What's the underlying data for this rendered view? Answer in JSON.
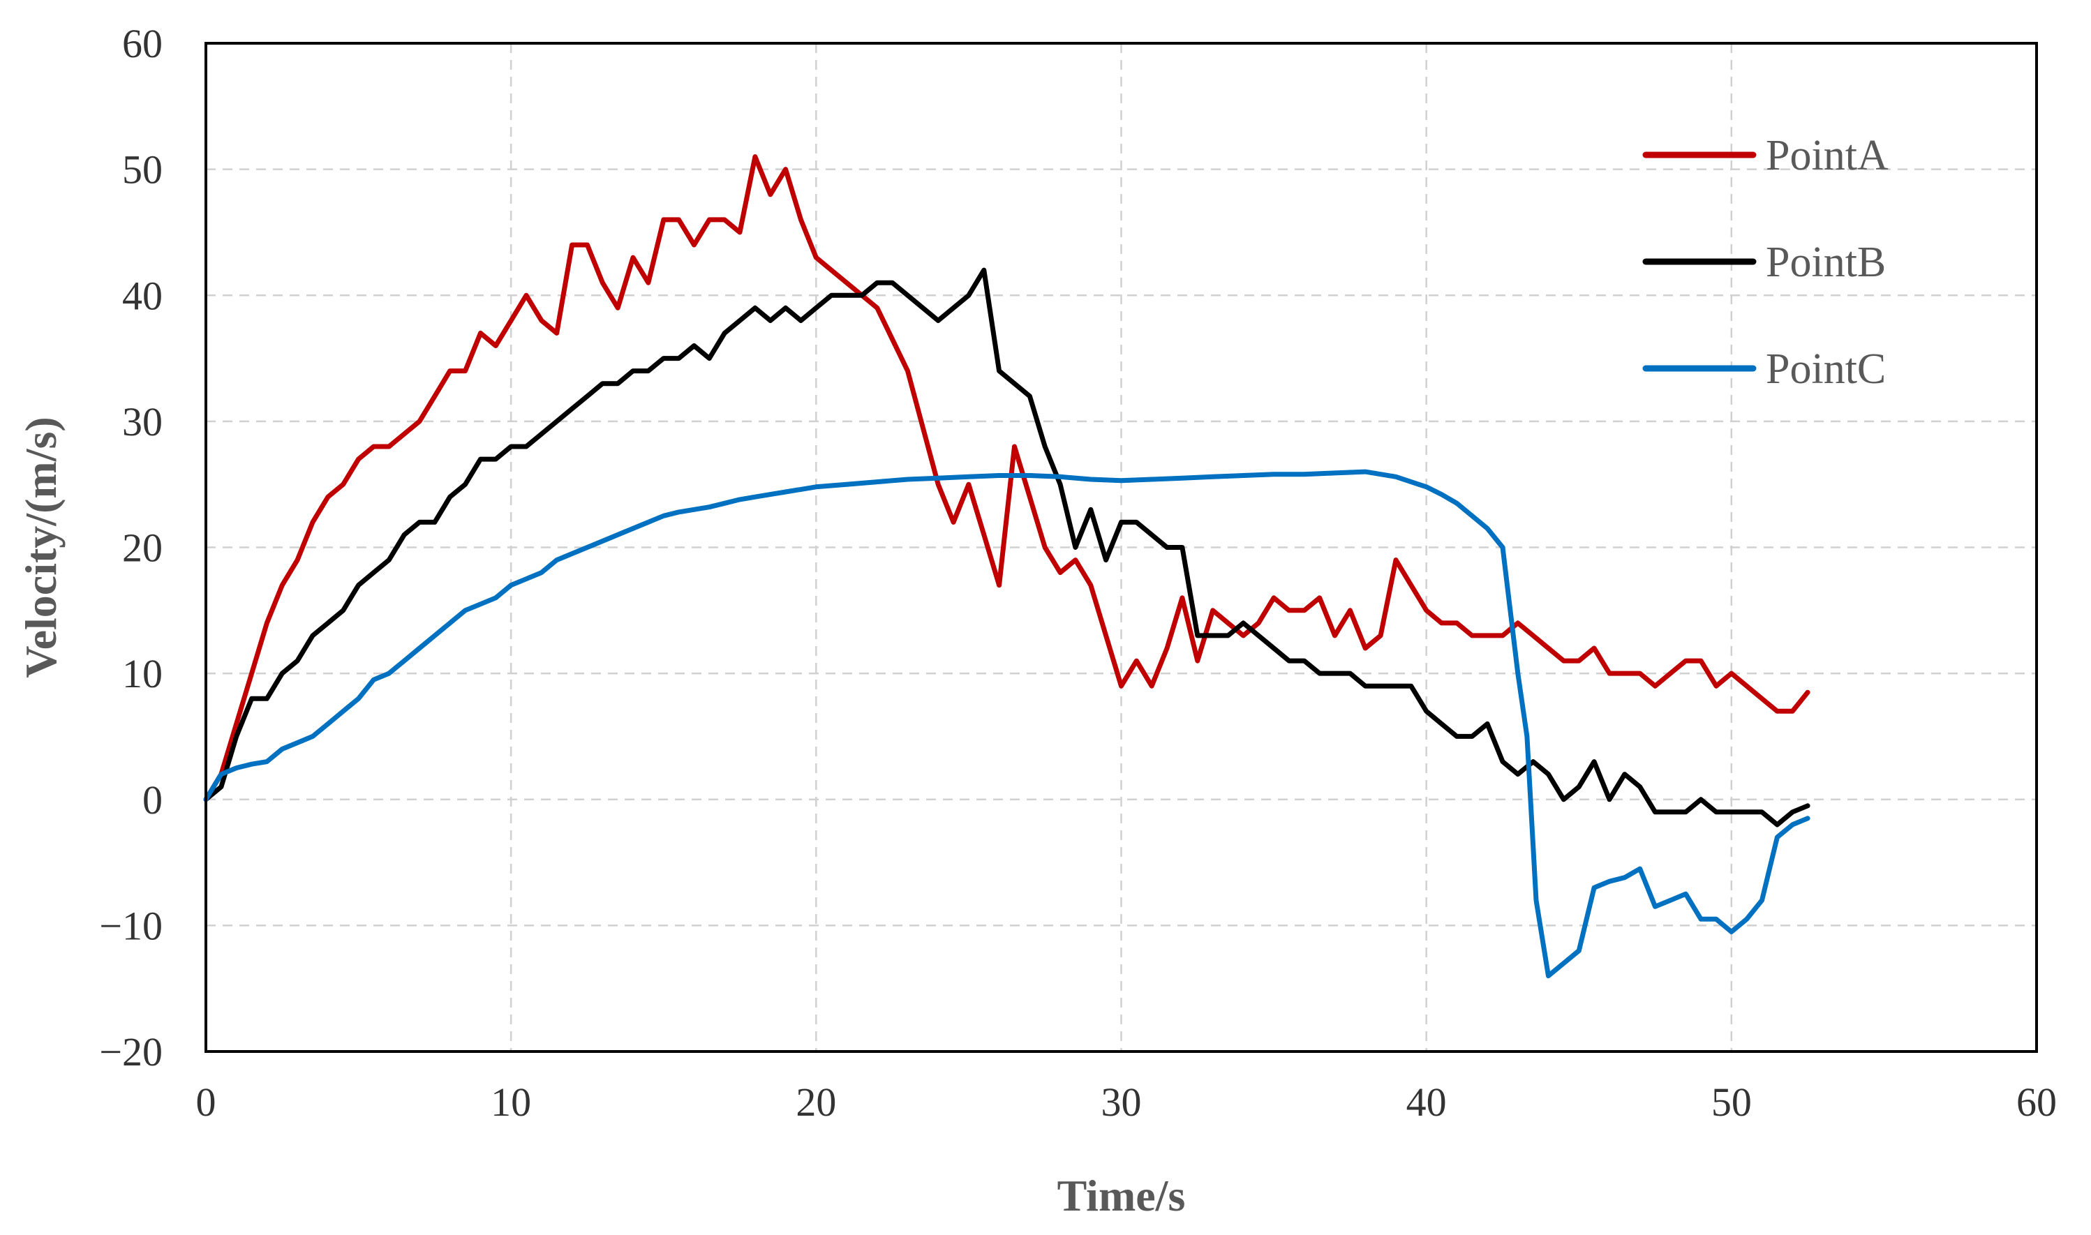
{
  "chart_data": {
    "type": "line",
    "title": "",
    "xlabel": "Time/s",
    "ylabel": "Velocity/(m/s)",
    "xlim": [
      0,
      60
    ],
    "ylim": [
      -20,
      60
    ],
    "xticks": [
      "0",
      "10",
      "20",
      "30",
      "40",
      "50",
      "60"
    ],
    "yticks": [
      "−20",
      "−10",
      "0",
      "10",
      "20",
      "30",
      "40",
      "50",
      "60"
    ],
    "grid": true,
    "legend_position": "top-right",
    "series": [
      {
        "name": "PointA",
        "color": "#c00000",
        "x": [
          0,
          0.5,
          1,
          1.5,
          2,
          2.5,
          3,
          3.5,
          4,
          4.5,
          5,
          5.5,
          6,
          6.5,
          7,
          7.5,
          8,
          8.5,
          9,
          9.5,
          10,
          10.5,
          11,
          11.5,
          12,
          12.5,
          13,
          13.5,
          14,
          14.5,
          15,
          15.5,
          16,
          16.5,
          17,
          17.5,
          18,
          18.5,
          19,
          19.5,
          20,
          21,
          22,
          23,
          24,
          24.5,
          25,
          25.5,
          26,
          26.5,
          27,
          27.5,
          28,
          28.5,
          29,
          29.5,
          30,
          30.5,
          31,
          31.5,
          32,
          32.5,
          33,
          33.5,
          34,
          34.5,
          35,
          35.5,
          36,
          36.5,
          37,
          37.5,
          38,
          38.5,
          39,
          39.5,
          40,
          40.5,
          41,
          41.5,
          42,
          42.5,
          43,
          43.5,
          44,
          44.5,
          45,
          45.5,
          46,
          46.5,
          47,
          47.5,
          48,
          48.5,
          49,
          49.5,
          50,
          50.5,
          51,
          51.5,
          52,
          52.5
        ],
        "values": [
          0,
          2,
          6,
          10,
          14,
          17,
          19,
          22,
          24,
          25,
          27,
          28,
          28,
          29,
          30,
          32,
          34,
          34,
          37,
          36,
          38,
          40,
          38,
          37,
          44,
          44,
          41,
          39,
          43,
          41,
          46,
          46,
          44,
          46,
          46,
          45,
          51,
          48,
          50,
          46,
          43,
          41,
          39,
          34,
          25,
          22,
          25,
          21,
          17,
          28,
          24,
          20,
          18,
          19,
          17,
          13,
          9,
          11,
          9,
          12,
          16,
          11,
          15,
          14,
          13,
          14,
          16,
          15,
          15,
          16,
          13,
          15,
          12,
          13,
          19,
          17,
          15,
          14,
          14,
          13,
          13,
          13,
          14,
          13,
          12,
          11,
          11,
          12,
          10,
          10,
          10,
          9,
          10,
          11,
          11,
          9,
          10,
          9,
          8,
          7,
          7,
          8.5
        ]
      },
      {
        "name": "PointB",
        "color": "#000000",
        "x": [
          0,
          0.5,
          1,
          1.5,
          2,
          2.5,
          3,
          3.5,
          4,
          4.5,
          5,
          5.5,
          6,
          6.5,
          7,
          7.5,
          8,
          8.5,
          9,
          9.5,
          10,
          10.5,
          11,
          11.5,
          12,
          12.5,
          13,
          13.5,
          14,
          14.5,
          15,
          15.5,
          16,
          16.5,
          17,
          17.5,
          18,
          18.5,
          19,
          19.5,
          20,
          20.5,
          21,
          21.5,
          22,
          22.5,
          23,
          23.5,
          24,
          24.5,
          25,
          25.5,
          26,
          26.5,
          27,
          27.5,
          28,
          28.5,
          29,
          29.5,
          30,
          30.5,
          31,
          31.5,
          32,
          32.5,
          33,
          33.5,
          34,
          34.5,
          35,
          35.5,
          36,
          36.5,
          37,
          37.5,
          38,
          38.5,
          39,
          39.5,
          40,
          40.5,
          41,
          41.5,
          42,
          42.5,
          43,
          43.5,
          44,
          44.5,
          45,
          45.5,
          46,
          46.5,
          47,
          47.5,
          48,
          48.5,
          49,
          49.5,
          50,
          50.5,
          51,
          51.5,
          52,
          52.5
        ],
        "values": [
          0,
          1,
          5,
          8,
          8,
          10,
          11,
          13,
          14,
          15,
          17,
          18,
          19,
          21,
          22,
          22,
          24,
          25,
          27,
          27,
          28,
          28,
          29,
          30,
          31,
          32,
          33,
          33,
          34,
          34,
          35,
          35,
          36,
          35,
          37,
          38,
          39,
          38,
          39,
          38,
          39,
          40,
          40,
          40,
          41,
          41,
          40,
          39,
          38,
          39,
          40,
          42,
          34,
          33,
          32,
          28,
          25,
          20,
          23,
          19,
          22,
          22,
          21,
          20,
          20,
          13,
          13,
          13,
          14,
          13,
          12,
          11,
          11,
          10,
          10,
          10,
          9,
          9,
          9,
          9,
          7,
          6,
          5,
          5,
          6,
          3,
          2,
          3,
          2,
          0,
          1,
          3,
          0,
          2,
          1,
          -1,
          -1,
          -1,
          0,
          -1,
          -1,
          -1,
          -1,
          -2,
          -1,
          -0.5
        ]
      },
      {
        "name": "PointC",
        "color": "#0070c0",
        "x": [
          0,
          0.5,
          1,
          1.5,
          2,
          2.5,
          3,
          3.5,
          4,
          4.5,
          5,
          5.5,
          6,
          6.5,
          7,
          7.5,
          8,
          8.5,
          9,
          9.5,
          10,
          10.5,
          11,
          11.5,
          12,
          12.5,
          13,
          13.5,
          14,
          14.5,
          15,
          15.5,
          16,
          16.5,
          17,
          17.5,
          18,
          18.5,
          19,
          19.5,
          20,
          21,
          22,
          23,
          24,
          25,
          26,
          27,
          28,
          29,
          30,
          31,
          32,
          33,
          34,
          35,
          36,
          37,
          38,
          39,
          39.5,
          40,
          40.5,
          41,
          41.5,
          42,
          42.5,
          43,
          43.3,
          43.6,
          44,
          44.5,
          45,
          45.5,
          46,
          46.5,
          47,
          47.5,
          48,
          48.5,
          49,
          49.5,
          50,
          50.5,
          51,
          51.5,
          52,
          52.5
        ],
        "values": [
          0,
          2,
          2.5,
          2.8,
          3,
          4,
          4.5,
          5,
          6,
          7,
          8,
          9.5,
          10,
          11,
          12,
          13,
          14,
          15,
          15.5,
          16,
          17,
          17.5,
          18,
          19,
          19.5,
          20,
          20.5,
          21,
          21.5,
          22,
          22.5,
          22.8,
          23,
          23.2,
          23.5,
          23.8,
          24,
          24.2,
          24.4,
          24.6,
          24.8,
          25,
          25.2,
          25.4,
          25.5,
          25.6,
          25.7,
          25.7,
          25.6,
          25.4,
          25.3,
          25.4,
          25.5,
          25.6,
          25.7,
          25.8,
          25.8,
          25.9,
          26,
          25.6,
          25.2,
          24.8,
          24.2,
          23.5,
          22.5,
          21.5,
          20,
          10,
          5,
          -8,
          -14,
          -13,
          -12,
          -7,
          -6.5,
          -6.2,
          -5.5,
          -8.5,
          -8,
          -7.5,
          -9.5,
          -9.5,
          -10.5,
          -9.5,
          -8,
          -3,
          -2,
          -1.5
        ]
      }
    ]
  }
}
